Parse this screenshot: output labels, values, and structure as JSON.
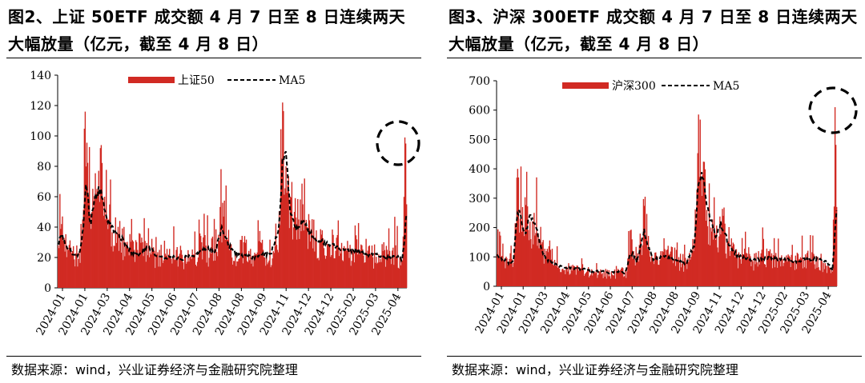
{
  "charts": [
    {
      "title": "图2、上证 50ETF 成交额 4 月 7 日至 8 日连续两天大幅放量（亿元，截至 4 月 8 日）",
      "source": "数据来源：wind，兴业证券经济与金融研究院整理",
      "colors": {
        "bar": "#d12a23",
        "ma": "#000000",
        "circle": "#000000"
      }
    },
    {
      "title": "图3、沪深 300ETF 成交额 4 月 7 日至 8 日连续两天大幅放量（亿元，截至 4 月 8 日）",
      "source": "数据来源：wind，兴业证券经济与金融研究院整理",
      "colors": {
        "bar": "#d12a23",
        "ma": "#000000",
        "circle": "#000000"
      }
    }
  ],
  "chart_data": [
    {
      "type": "bar",
      "series": [
        {
          "name": "上证50",
          "kind": "bar",
          "color": "#d12a23"
        },
        {
          "name": "MA5",
          "kind": "line-dashed",
          "color": "#000000"
        }
      ],
      "x_ticks": [
        "2024-01",
        "2024-01",
        "2024-03",
        "2024-04",
        "2024-05",
        "2024-06",
        "2024-07",
        "2024-08",
        "2024-08",
        "2024-09",
        "2024-11",
        "2024-12",
        "2024-12",
        "2025-02",
        "2025-03",
        "2025-04"
      ],
      "ylim": [
        0,
        140
      ],
      "y_ticks": [
        0,
        20,
        40,
        60,
        80,
        100,
        120,
        140
      ],
      "bar_anchors": [
        [
          0,
          28
        ],
        [
          4,
          42
        ],
        [
          12,
          25
        ],
        [
          25,
          24
        ],
        [
          29,
          45
        ],
        [
          32,
          116
        ],
        [
          36,
          60
        ],
        [
          40,
          50
        ],
        [
          45,
          62
        ],
        [
          50,
          92
        ],
        [
          55,
          60
        ],
        [
          60,
          45
        ],
        [
          70,
          36
        ],
        [
          80,
          30
        ],
        [
          90,
          25
        ],
        [
          100,
          30
        ],
        [
          110,
          22
        ],
        [
          120,
          25
        ],
        [
          130,
          20
        ],
        [
          140,
          25
        ],
        [
          150,
          20
        ],
        [
          160,
          22
        ],
        [
          170,
          30
        ],
        [
          180,
          24
        ],
        [
          190,
          35
        ],
        [
          195,
          56
        ],
        [
          200,
          32
        ],
        [
          210,
          22
        ],
        [
          220,
          30
        ],
        [
          230,
          21
        ],
        [
          240,
          30
        ],
        [
          250,
          18
        ],
        [
          260,
          25
        ],
        [
          266,
          122
        ],
        [
          270,
          80
        ],
        [
          275,
          60
        ],
        [
          280,
          50
        ],
        [
          285,
          45
        ],
        [
          290,
          55
        ],
        [
          295,
          40
        ],
        [
          300,
          38
        ],
        [
          310,
          30
        ],
        [
          320,
          28
        ],
        [
          330,
          33
        ],
        [
          340,
          26
        ],
        [
          350,
          23
        ],
        [
          360,
          28
        ],
        [
          370,
          22
        ],
        [
          380,
          22
        ],
        [
          390,
          25
        ],
        [
          400,
          28
        ],
        [
          405,
          20
        ],
        [
          408,
          18
        ],
        [
          411,
          99
        ],
        [
          413,
          55
        ]
      ],
      "ma_anchors": [
        [
          0,
          30
        ],
        [
          5,
          34
        ],
        [
          10,
          28
        ],
        [
          18,
          22
        ],
        [
          25,
          22
        ],
        [
          30,
          40
        ],
        [
          33,
          72
        ],
        [
          38,
          42
        ],
        [
          43,
          55
        ],
        [
          48,
          66
        ],
        [
          53,
          58
        ],
        [
          58,
          44
        ],
        [
          66,
          38
        ],
        [
          76,
          32
        ],
        [
          86,
          24
        ],
        [
          96,
          21
        ],
        [
          106,
          28
        ],
        [
          116,
          22
        ],
        [
          126,
          20
        ],
        [
          136,
          21
        ],
        [
          146,
          19
        ],
        [
          156,
          21
        ],
        [
          166,
          22
        ],
        [
          176,
          26
        ],
        [
          186,
          23
        ],
        [
          194,
          40
        ],
        [
          202,
          28
        ],
        [
          212,
          22
        ],
        [
          222,
          21
        ],
        [
          232,
          20
        ],
        [
          242,
          22
        ],
        [
          252,
          22
        ],
        [
          262,
          40
        ],
        [
          266,
          80
        ],
        [
          270,
          87
        ],
        [
          275,
          52
        ],
        [
          280,
          40
        ],
        [
          285,
          38
        ],
        [
          290,
          45
        ],
        [
          296,
          38
        ],
        [
          304,
          32
        ],
        [
          314,
          30
        ],
        [
          324,
          28
        ],
        [
          334,
          26
        ],
        [
          344,
          24
        ],
        [
          354,
          25
        ],
        [
          364,
          22
        ],
        [
          374,
          22
        ],
        [
          384,
          21
        ],
        [
          394,
          20
        ],
        [
          404,
          20
        ],
        [
          408,
          18
        ],
        [
          411,
          35
        ],
        [
          413,
          50
        ]
      ],
      "annotation": "dashed circle around 2025-04-07/08 spike"
    },
    {
      "type": "bar",
      "series": [
        {
          "name": "沪深300",
          "kind": "bar",
          "color": "#d12a23"
        },
        {
          "name": "MA5",
          "kind": "line-dashed",
          "color": "#000000"
        }
      ],
      "x_ticks": [
        "2024-01",
        "2024-01",
        "2024-03",
        "2024-04",
        "2024-05",
        "2024-06",
        "2024-07",
        "2024-08",
        "2024-08",
        "2024-09",
        "2024-11",
        "2024-12",
        "2024-12",
        "2025-02",
        "2025-03",
        "2025-04"
      ],
      "ylim": [
        0,
        700
      ],
      "y_ticks": [
        0,
        100,
        200,
        300,
        400,
        500,
        600,
        700
      ],
      "bar_anchors": [
        [
          0,
          110
        ],
        [
          5,
          100
        ],
        [
          12,
          95
        ],
        [
          20,
          80
        ],
        [
          24,
          370
        ],
        [
          28,
          230
        ],
        [
          32,
          200
        ],
        [
          36,
          390
        ],
        [
          40,
          220
        ],
        [
          45,
          250
        ],
        [
          50,
          180
        ],
        [
          55,
          150
        ],
        [
          60,
          120
        ],
        [
          70,
          90
        ],
        [
          80,
          60
        ],
        [
          90,
          70
        ],
        [
          100,
          60
        ],
        [
          110,
          55
        ],
        [
          120,
          45
        ],
        [
          130,
          50
        ],
        [
          140,
          40
        ],
        [
          150,
          55
        ],
        [
          158,
          50
        ],
        [
          162,
          190
        ],
        [
          166,
          120
        ],
        [
          170,
          100
        ],
        [
          175,
          150
        ],
        [
          180,
          305
        ],
        [
          185,
          120
        ],
        [
          190,
          85
        ],
        [
          200,
          100
        ],
        [
          210,
          110
        ],
        [
          220,
          90
        ],
        [
          230,
          80
        ],
        [
          240,
          160
        ],
        [
          245,
          585
        ],
        [
          250,
          380
        ],
        [
          255,
          260
        ],
        [
          260,
          200
        ],
        [
          265,
          180
        ],
        [
          270,
          170
        ],
        [
          275,
          240
        ],
        [
          280,
          150
        ],
        [
          290,
          110
        ],
        [
          300,
          100
        ],
        [
          310,
          90
        ],
        [
          320,
          100
        ],
        [
          330,
          120
        ],
        [
          340,
          90
        ],
        [
          350,
          100
        ],
        [
          360,
          85
        ],
        [
          370,
          95
        ],
        [
          380,
          95
        ],
        [
          390,
          100
        ],
        [
          400,
          70
        ],
        [
          405,
          60
        ],
        [
          408,
          50
        ],
        [
          411,
          610
        ],
        [
          413,
          270
        ]
      ],
      "ma_anchors": [
        [
          0,
          105
        ],
        [
          6,
          95
        ],
        [
          14,
          80
        ],
        [
          20,
          85
        ],
        [
          24,
          230
        ],
        [
          27,
          255
        ],
        [
          31,
          210
        ],
        [
          35,
          175
        ],
        [
          39,
          235
        ],
        [
          43,
          238
        ],
        [
          48,
          200
        ],
        [
          53,
          140
        ],
        [
          58,
          100
        ],
        [
          66,
          80
        ],
        [
          76,
          70
        ],
        [
          86,
          62
        ],
        [
          96,
          60
        ],
        [
          106,
          58
        ],
        [
          116,
          50
        ],
        [
          126,
          52
        ],
        [
          136,
          45
        ],
        [
          146,
          50
        ],
        [
          156,
          45
        ],
        [
          162,
          110
        ],
        [
          166,
          110
        ],
        [
          170,
          85
        ],
        [
          175,
          140
        ],
        [
          179,
          190
        ],
        [
          184,
          135
        ],
        [
          190,
          90
        ],
        [
          200,
          100
        ],
        [
          210,
          100
        ],
        [
          220,
          85
        ],
        [
          230,
          78
        ],
        [
          240,
          140
        ],
        [
          244,
          310
        ],
        [
          248,
          385
        ],
        [
          252,
          340
        ],
        [
          257,
          250
        ],
        [
          262,
          210
        ],
        [
          267,
          170
        ],
        [
          272,
          210
        ],
        [
          276,
          190
        ],
        [
          282,
          140
        ],
        [
          292,
          105
        ],
        [
          302,
          95
        ],
        [
          312,
          90
        ],
        [
          322,
          92
        ],
        [
          332,
          100
        ],
        [
          342,
          90
        ],
        [
          352,
          95
        ],
        [
          362,
          85
        ],
        [
          372,
          90
        ],
        [
          382,
          92
        ],
        [
          392,
          92
        ],
        [
          402,
          80
        ],
        [
          408,
          55
        ],
        [
          411,
          180
        ],
        [
          413,
          265
        ]
      ],
      "annotation": "dashed circle around 2025-04-07/08 spike"
    }
  ]
}
